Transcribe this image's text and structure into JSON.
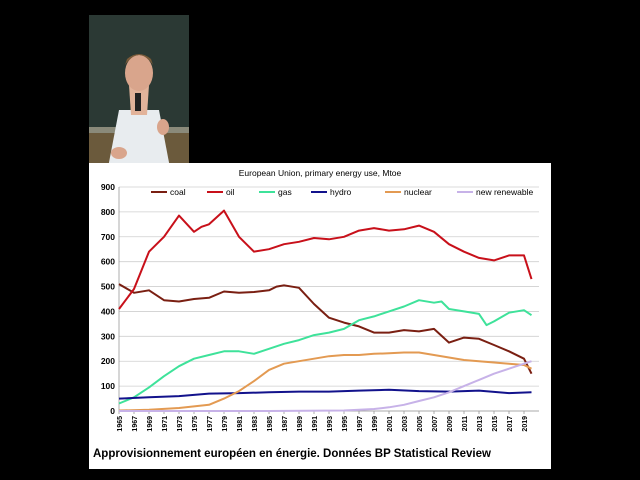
{
  "caption": "Approvisionnement européen en énergie. Données BP Statistical Review",
  "chart_data": {
    "type": "line",
    "title": "European Union, primary energy use, Mtoe",
    "xlabel": "",
    "ylabel": "",
    "ylim": [
      0,
      900
    ],
    "xlim": [
      1965,
      2021
    ],
    "yticks": [
      0,
      100,
      200,
      300,
      400,
      500,
      600,
      700,
      800,
      900
    ],
    "xticks": [
      1965,
      1967,
      1969,
      1971,
      1973,
      1975,
      1977,
      1979,
      1981,
      1983,
      1985,
      1987,
      1989,
      1991,
      1993,
      1995,
      1997,
      1999,
      2001,
      2003,
      2005,
      2007,
      2009,
      2011,
      2013,
      2015,
      2017,
      2019
    ],
    "grid": true,
    "legend": "top",
    "series": [
      {
        "name": "coal",
        "color": "#7a1f12",
        "x": [
          1965,
          1967,
          1969,
          1971,
          1973,
          1975,
          1977,
          1979,
          1981,
          1983,
          1985,
          1986,
          1987,
          1989,
          1991,
          1993,
          1995,
          1997,
          1999,
          2001,
          2003,
          2005,
          2007,
          2009,
          2011,
          2013,
          2015,
          2017,
          2019,
          2020
        ],
        "y": [
          510,
          475,
          485,
          445,
          440,
          450,
          455,
          480,
          475,
          478,
          485,
          500,
          505,
          495,
          430,
          375,
          355,
          340,
          315,
          315,
          325,
          320,
          330,
          275,
          295,
          290,
          265,
          240,
          210,
          150
        ]
      },
      {
        "name": "oil",
        "color": "#c8101a",
        "x": [
          1965,
          1967,
          1969,
          1971,
          1973,
          1975,
          1976,
          1977,
          1979,
          1981,
          1983,
          1985,
          1987,
          1989,
          1991,
          1993,
          1995,
          1997,
          1999,
          2001,
          2003,
          2005,
          2007,
          2009,
          2011,
          2013,
          2015,
          2017,
          2019,
          2020
        ],
        "y": [
          410,
          490,
          640,
          700,
          785,
          720,
          740,
          750,
          805,
          700,
          640,
          650,
          670,
          680,
          695,
          690,
          700,
          725,
          735,
          725,
          730,
          745,
          720,
          670,
          640,
          615,
          605,
          625,
          625,
          530
        ]
      },
      {
        "name": "gas",
        "color": "#3ee29a",
        "x": [
          1965,
          1967,
          1969,
          1971,
          1973,
          1975,
          1977,
          1979,
          1981,
          1983,
          1985,
          1987,
          1989,
          1991,
          1993,
          1995,
          1997,
          1999,
          2001,
          2003,
          2005,
          2007,
          2008,
          2009,
          2011,
          2013,
          2014,
          2015,
          2017,
          2019,
          2020
        ],
        "y": [
          30,
          55,
          95,
          140,
          180,
          210,
          225,
          240,
          240,
          230,
          250,
          270,
          285,
          305,
          315,
          330,
          365,
          380,
          400,
          420,
          445,
          435,
          440,
          410,
          400,
          390,
          345,
          360,
          395,
          405,
          385
        ]
      },
      {
        "name": "hydro",
        "color": "#12128c",
        "x": [
          1965,
          1969,
          1973,
          1977,
          1981,
          1985,
          1989,
          1993,
          1997,
          2001,
          2005,
          2009,
          2013,
          2017,
          2020
        ],
        "y": [
          50,
          55,
          60,
          70,
          72,
          75,
          78,
          78,
          82,
          85,
          80,
          78,
          82,
          72,
          75
        ]
      },
      {
        "name": "nuclear",
        "color": "#e39a52",
        "x": [
          1965,
          1969,
          1973,
          1977,
          1979,
          1981,
          1983,
          1985,
          1987,
          1989,
          1991,
          1993,
          1995,
          1997,
          1999,
          2001,
          2003,
          2005,
          2007,
          2009,
          2011,
          2013,
          2015,
          2017,
          2019,
          2020
        ],
        "y": [
          2,
          5,
          12,
          25,
          50,
          80,
          120,
          165,
          190,
          200,
          210,
          220,
          225,
          225,
          230,
          232,
          235,
          235,
          225,
          215,
          205,
          200,
          195,
          190,
          185,
          170
        ]
      },
      {
        "name": "new renewable",
        "color": "#c7b2e8",
        "x": [
          1965,
          1975,
          1985,
          1995,
          1999,
          2001,
          2003,
          2005,
          2007,
          2009,
          2011,
          2013,
          2015,
          2017,
          2019,
          2020
        ],
        "y": [
          0,
          0,
          0,
          2,
          8,
          15,
          25,
          40,
          55,
          75,
          100,
          125,
          150,
          170,
          190,
          200
        ]
      }
    ]
  }
}
